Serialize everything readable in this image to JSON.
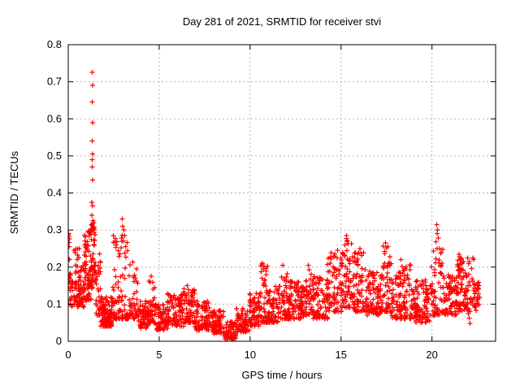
{
  "chart_data": {
    "type": "scatter",
    "title": "Day 281 of 2021, SRMTID for receiver stvi",
    "xlabel": "GPS time / hours",
    "ylabel": "SRMTID / TECUs",
    "xlim": [
      0,
      23.5
    ],
    "ylim": [
      0,
      0.8
    ],
    "xticks": [
      0,
      5,
      10,
      15,
      20
    ],
    "xtick_labels": [
      "0",
      "5",
      "10",
      "15",
      "20"
    ],
    "yticks": [
      0,
      0.1,
      0.2,
      0.3,
      0.4,
      0.5,
      0.6,
      0.7,
      0.8
    ],
    "ytick_labels": [
      "0",
      "0.1",
      "0.2",
      "0.3",
      "0.4",
      "0.5",
      "0.6",
      "0.7",
      "0.8"
    ],
    "grid": true,
    "legend": "none",
    "marker": {
      "symbol": "plus",
      "color": "#ff0000",
      "half_size": 3,
      "stroke_width": 1.2
    },
    "grid_color": "#b4b4b4",
    "axis_color": "#000000",
    "background_color": "#ffffff",
    "seed": 281,
    "notable_points": [
      [
        0.02,
        0.29
      ],
      [
        0.04,
        0.255
      ],
      [
        0.06,
        0.22
      ],
      [
        1.32,
        0.725
      ],
      [
        1.33,
        0.69
      ],
      [
        1.31,
        0.645
      ],
      [
        1.33,
        0.59
      ],
      [
        1.32,
        0.54
      ],
      [
        1.33,
        0.505
      ],
      [
        1.31,
        0.49
      ],
      [
        1.32,
        0.47
      ],
      [
        1.34,
        0.435
      ],
      [
        1.3,
        0.375
      ],
      [
        1.33,
        0.365
      ],
      [
        1.29,
        0.34
      ],
      [
        1.36,
        0.325
      ],
      [
        1.28,
        0.315
      ],
      [
        2.98,
        0.33
      ],
      [
        3.0,
        0.31
      ],
      [
        3.05,
        0.3
      ],
      [
        3.1,
        0.285
      ],
      [
        2.95,
        0.27
      ],
      [
        3.15,
        0.255
      ],
      [
        4.55,
        0.175
      ],
      [
        6.55,
        0.15
      ],
      [
        8.72,
        0.006
      ],
      [
        8.76,
        0.006
      ],
      [
        9.05,
        0.007
      ],
      [
        9.1,
        0.005
      ],
      [
        10.68,
        0.21
      ],
      [
        10.72,
        0.195
      ],
      [
        11.8,
        0.205
      ],
      [
        13.2,
        0.205
      ],
      [
        14.8,
        0.245
      ],
      [
        15.3,
        0.285
      ],
      [
        15.35,
        0.27
      ],
      [
        15.22,
        0.26
      ],
      [
        16.05,
        0.25
      ],
      [
        16.1,
        0.238
      ],
      [
        17.45,
        0.265
      ],
      [
        17.5,
        0.252
      ],
      [
        18.3,
        0.22
      ],
      [
        20.25,
        0.315
      ],
      [
        20.3,
        0.3
      ],
      [
        20.28,
        0.29
      ],
      [
        20.35,
        0.278
      ],
      [
        20.22,
        0.268
      ],
      [
        21.5,
        0.235
      ],
      [
        21.6,
        0.225
      ],
      [
        21.95,
        0.088
      ],
      [
        22.0,
        0.075
      ],
      [
        22.05,
        0.062
      ],
      [
        22.1,
        0.048
      ]
    ],
    "cloud_bands": [
      [
        0.0,
        0.15,
        0.1,
        0.3,
        18,
        1.3
      ],
      [
        0.1,
        0.85,
        0.09,
        0.21,
        80,
        1.5
      ],
      [
        0.25,
        0.6,
        0.2,
        0.265,
        8,
        1.2
      ],
      [
        0.85,
        1.25,
        0.11,
        0.31,
        70,
        1.5
      ],
      [
        1.25,
        1.5,
        0.14,
        0.33,
        50,
        1.3
      ],
      [
        1.5,
        1.78,
        0.07,
        0.24,
        30,
        1.9
      ],
      [
        1.78,
        2.45,
        0.04,
        0.12,
        120,
        1.6
      ],
      [
        2.45,
        3.3,
        0.06,
        0.29,
        90,
        2.3
      ],
      [
        3.3,
        3.85,
        0.06,
        0.22,
        45,
        2.0
      ],
      [
        3.85,
        4.45,
        0.035,
        0.11,
        70,
        1.5
      ],
      [
        4.45,
        4.75,
        0.05,
        0.18,
        30,
        1.9
      ],
      [
        4.75,
        5.45,
        0.03,
        0.1,
        70,
        1.5
      ],
      [
        5.45,
        6.35,
        0.04,
        0.13,
        90,
        1.5
      ],
      [
        6.35,
        6.95,
        0.05,
        0.145,
        60,
        1.5
      ],
      [
        6.95,
        7.85,
        0.03,
        0.11,
        90,
        1.5
      ],
      [
        7.85,
        8.55,
        0.02,
        0.085,
        70,
        1.4
      ],
      [
        8.55,
        9.25,
        0.005,
        0.055,
        60,
        1.2
      ],
      [
        9.25,
        9.95,
        0.025,
        0.09,
        70,
        1.4
      ],
      [
        9.95,
        10.55,
        0.04,
        0.13,
        65,
        1.5
      ],
      [
        10.55,
        10.95,
        0.05,
        0.21,
        45,
        2.1
      ],
      [
        10.95,
        11.65,
        0.05,
        0.15,
        70,
        1.5
      ],
      [
        11.65,
        12.1,
        0.06,
        0.2,
        45,
        1.9
      ],
      [
        12.1,
        13.05,
        0.06,
        0.165,
        100,
        1.4
      ],
      [
        13.05,
        13.45,
        0.07,
        0.2,
        40,
        1.7
      ],
      [
        13.45,
        14.25,
        0.06,
        0.175,
        80,
        1.4
      ],
      [
        14.25,
        15.05,
        0.08,
        0.24,
        80,
        1.8
      ],
      [
        15.05,
        15.65,
        0.09,
        0.28,
        60,
        1.9
      ],
      [
        15.65,
        16.35,
        0.08,
        0.25,
        70,
        1.9
      ],
      [
        16.35,
        17.25,
        0.07,
        0.19,
        90,
        1.4
      ],
      [
        17.25,
        17.75,
        0.08,
        0.26,
        50,
        2.0
      ],
      [
        17.75,
        19.05,
        0.06,
        0.21,
        130,
        1.6
      ],
      [
        19.05,
        19.95,
        0.05,
        0.17,
        90,
        1.4
      ],
      [
        19.95,
        20.6,
        0.07,
        0.25,
        60,
        1.8
      ],
      [
        20.6,
        21.35,
        0.07,
        0.18,
        75,
        1.4
      ],
      [
        21.35,
        22.3,
        0.08,
        0.23,
        95,
        1.6
      ],
      [
        22.3,
        22.65,
        0.08,
        0.16,
        30,
        1.3
      ]
    ]
  }
}
